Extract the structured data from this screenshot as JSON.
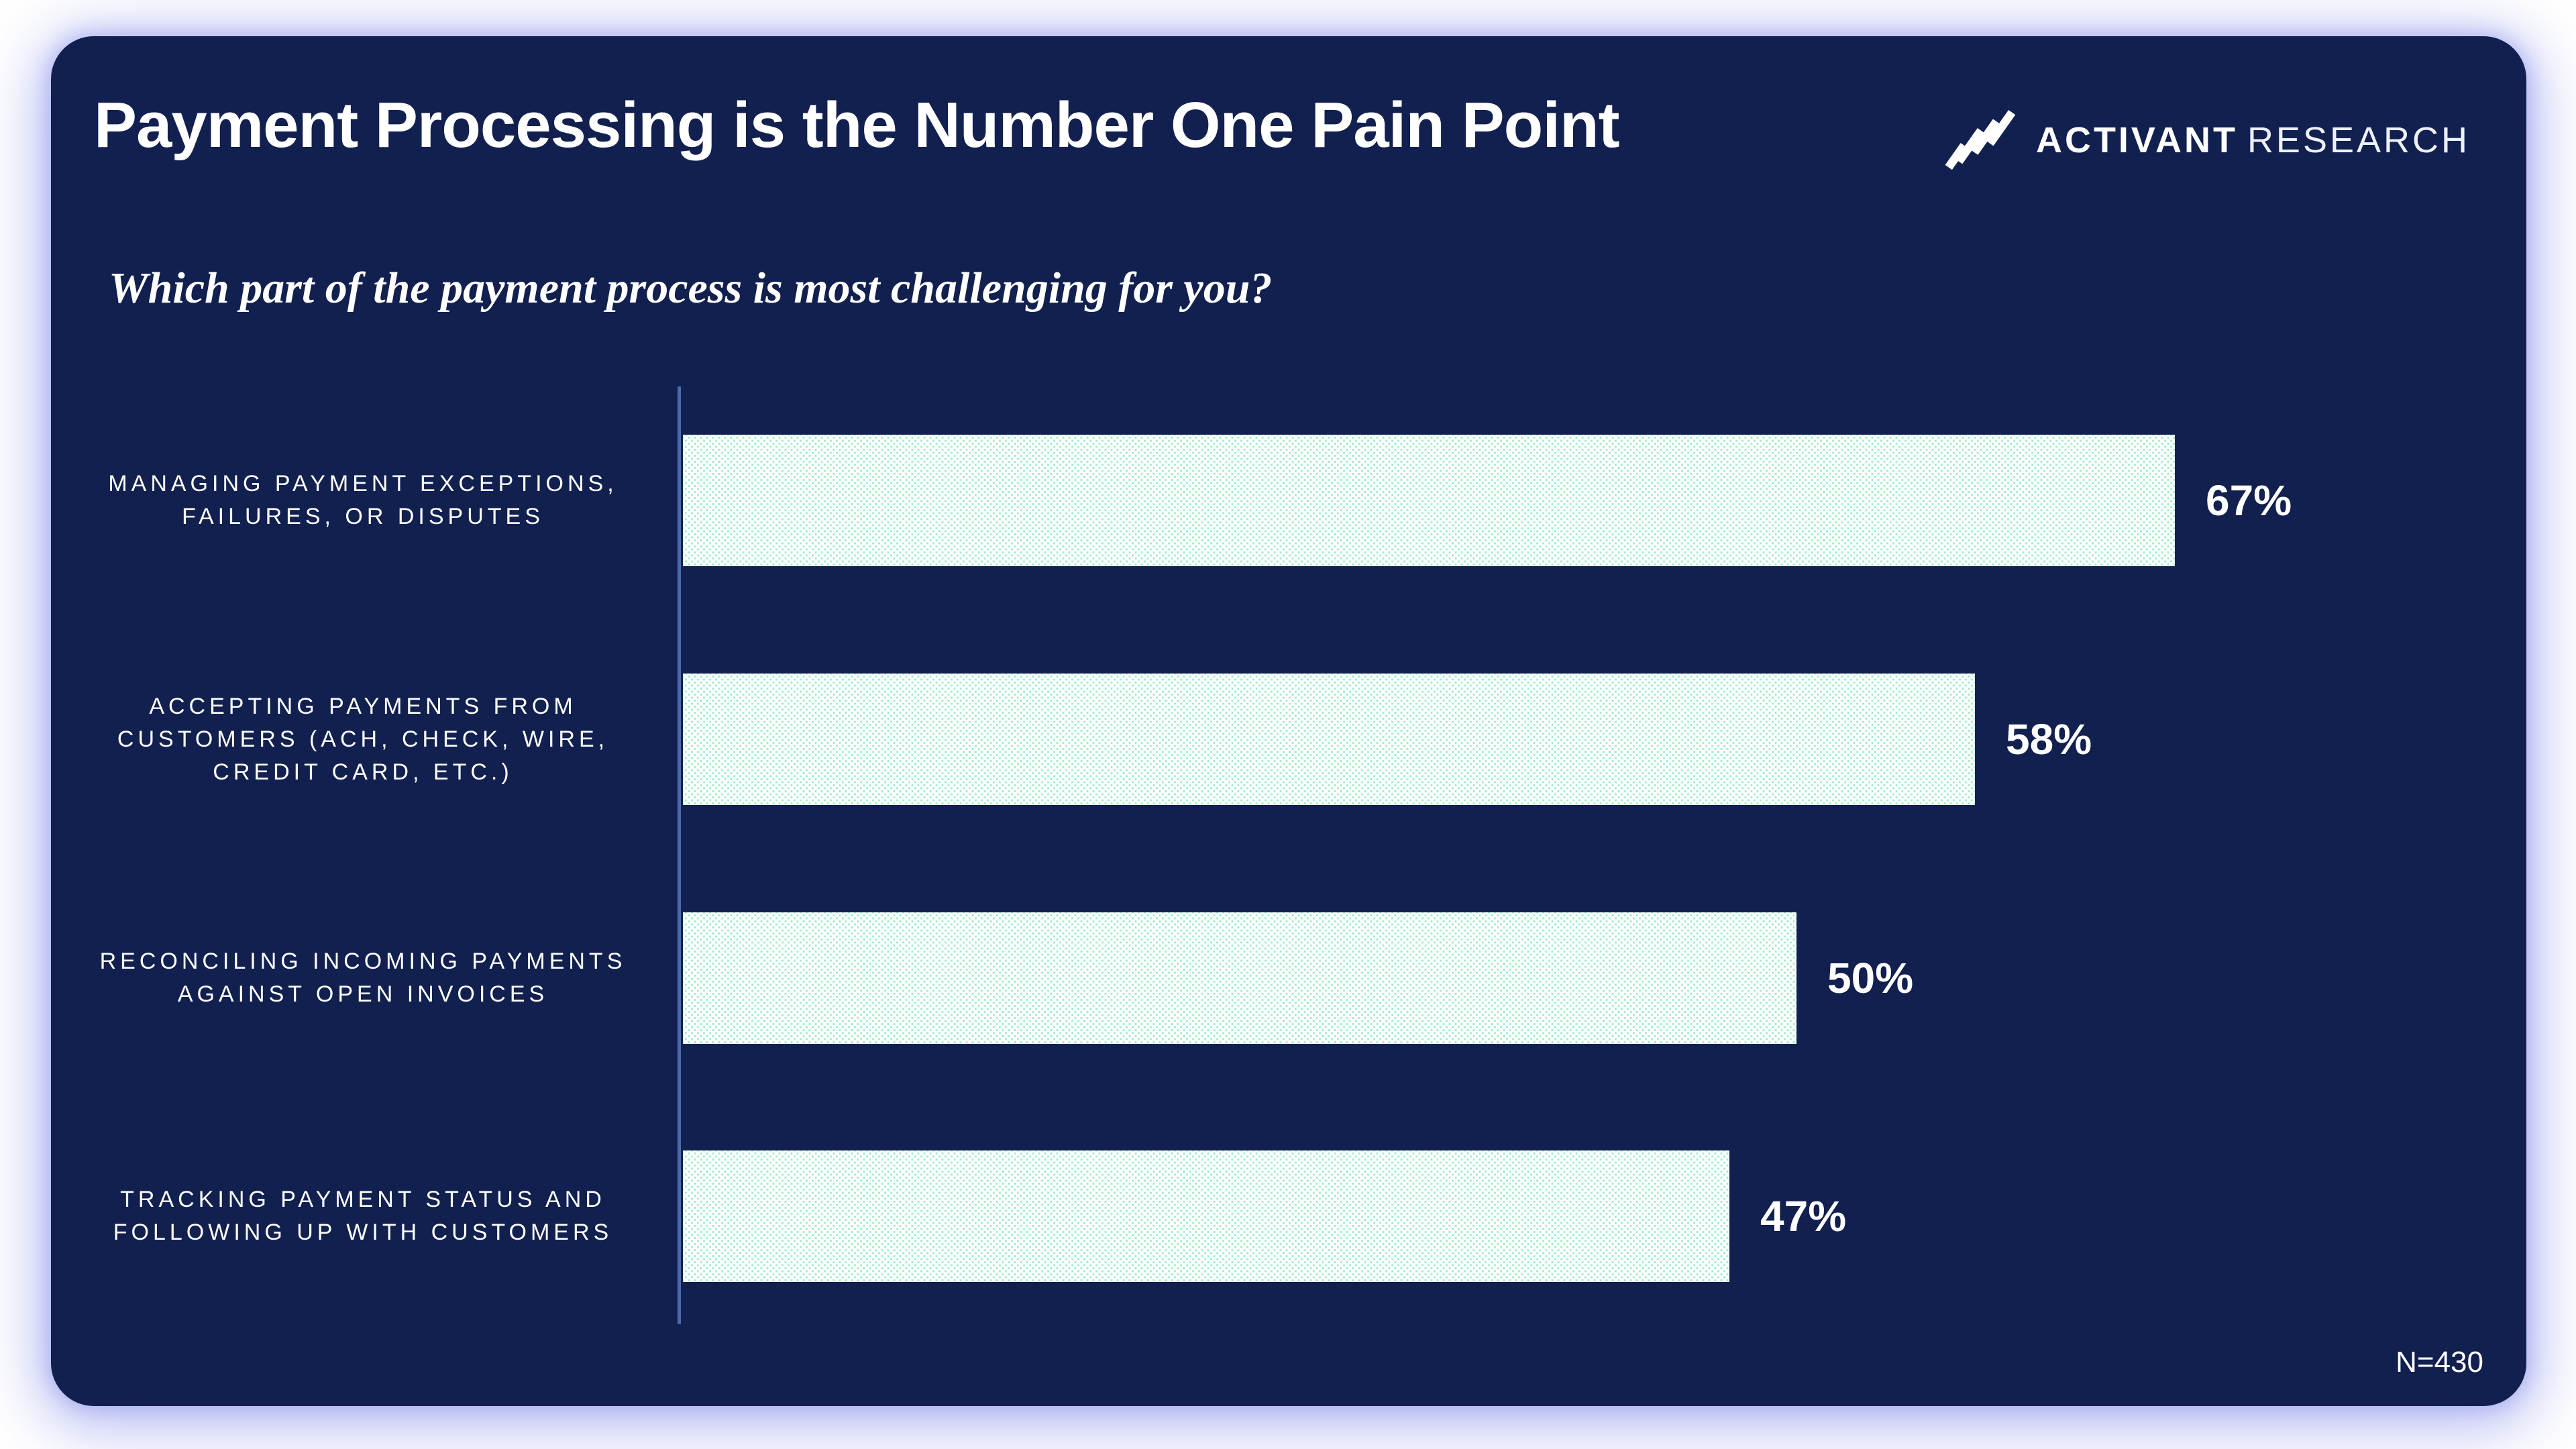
{
  "header": {
    "title": "Payment Processing is the Number One Pain Point"
  },
  "logo": {
    "brand": "ACTIVANT",
    "suffix": "RESEARCH",
    "icon": "activant-stripes-icon"
  },
  "subtitle": "Which part of the payment process is most challenging for you?",
  "footnote": "N=430",
  "colors": {
    "card_bg": "#12204f",
    "axis": "#4a6cae",
    "bar_fill": "#c9f3dc",
    "bar_dot": "#7ae8ad",
    "text": "#ffffff",
    "glow": "#8c96eb"
  },
  "chart_data": {
    "type": "bar",
    "orientation": "horizontal",
    "title": "Payment Processing is the Number One Pain Point",
    "question": "Which part of the payment process is most challenging for you?",
    "unit": "percent",
    "categories": [
      "MANAGING PAYMENT EXCEPTIONS, FAILURES, OR DISPUTES",
      "ACCEPTING PAYMENTS FROM CUSTOMERS (ACH, CHECK, WIRE, CREDIT CARD, ETC.)",
      "RECONCILING INCOMING PAYMENTS AGAINST OPEN INVOICES",
      "TRACKING PAYMENT STATUS AND FOLLOWING UP WITH CUSTOMERS"
    ],
    "values": [
      67,
      58,
      50,
      47
    ],
    "value_labels": [
      "67%",
      "58%",
      "50%",
      "47%"
    ],
    "xlim": [
      0,
      82
    ],
    "grid": false,
    "legend": false,
    "value_label_position": "right-of-bar",
    "bar_pattern": "dotted-halftone",
    "sample_size": "N=430"
  }
}
